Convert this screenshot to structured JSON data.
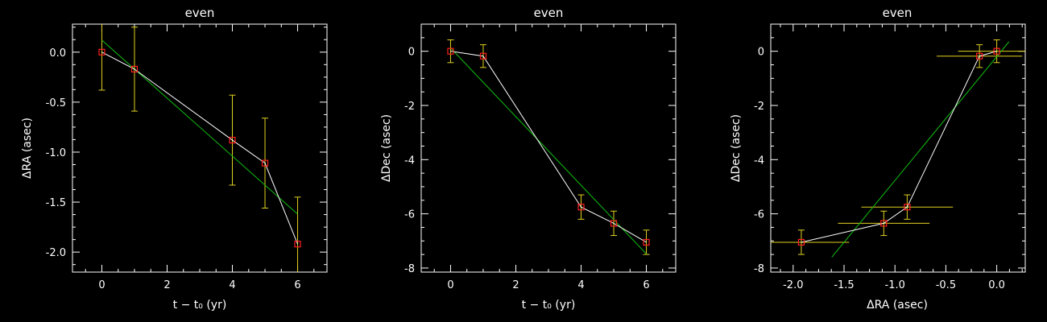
{
  "chart_data": [
    {
      "type": "scatter",
      "title": "even",
      "xlabel": "t − t₀ (yr)",
      "ylabel": "ΔRA (asec)",
      "xlim": [
        -0.9,
        6.9
      ],
      "ylim": [
        -2.2,
        0.28
      ],
      "xticks": [
        0,
        2,
        4,
        6
      ],
      "xtick_labels": [
        "0",
        "2",
        "4",
        "6"
      ],
      "yticks": [
        0.0,
        -0.5,
        -1.0,
        -1.5,
        -2.0
      ],
      "ytick_labels": [
        "0.0",
        "-0.5",
        "-1.0",
        "-1.5",
        "-2.0"
      ],
      "grid": false,
      "points": [
        {
          "x": 0,
          "y": 0.0,
          "yerr": 0.38
        },
        {
          "x": 1,
          "y": -0.17,
          "yerr": 0.42
        },
        {
          "x": 4,
          "y": -0.88,
          "yerr": 0.45
        },
        {
          "x": 5,
          "y": -1.11,
          "yerr": 0.45
        },
        {
          "x": 6,
          "y": -1.92,
          "yerr": 0.47
        }
      ],
      "fit": [
        [
          0,
          0.12
        ],
        [
          6,
          -1.62
        ]
      ],
      "colors": {
        "points": "#ff2020",
        "errorbars": "#e0d020",
        "connect": "#ffffff",
        "fit": "#10c010",
        "axes": "#ffffff"
      }
    },
    {
      "type": "scatter",
      "title": "even",
      "xlabel": "t − t₀ (yr)",
      "ylabel": "ΔDec (asec)",
      "xlim": [
        -0.9,
        6.9
      ],
      "ylim": [
        -8.15,
        1.0
      ],
      "xticks": [
        0,
        2,
        4,
        6
      ],
      "xtick_labels": [
        "0",
        "2",
        "4",
        "6"
      ],
      "yticks": [
        0,
        -2,
        -4,
        -6,
        -8
      ],
      "ytick_labels": [
        "0",
        "-2",
        "-4",
        "-6",
        "-8"
      ],
      "grid": false,
      "points": [
        {
          "x": 0,
          "y": 0.0,
          "yerr": 0.42
        },
        {
          "x": 1,
          "y": -0.18,
          "yerr": 0.42
        },
        {
          "x": 4,
          "y": -5.75,
          "yerr": 0.45
        },
        {
          "x": 5,
          "y": -6.35,
          "yerr": 0.45
        },
        {
          "x": 6,
          "y": -7.05,
          "yerr": 0.45
        }
      ],
      "fit": [
        [
          0,
          0.12
        ],
        [
          6,
          -7.48
        ]
      ],
      "colors": {
        "points": "#ff2020",
        "errorbars": "#e0d020",
        "connect": "#ffffff",
        "fit": "#10c010",
        "axes": "#ffffff"
      }
    },
    {
      "type": "scatter",
      "title": "even",
      "xlabel": "ΔRA (asec)",
      "ylabel": "ΔDec (asec)",
      "xlim": [
        -2.22,
        0.28
      ],
      "ylim": [
        -8.15,
        1.0
      ],
      "xticks": [
        -2.0,
        -1.5,
        -1.0,
        -0.5,
        0.0
      ],
      "xtick_labels": [
        "-2.0",
        "-1.5",
        "-1.0",
        "-0.5",
        "0.0"
      ],
      "yticks": [
        0,
        -2,
        -4,
        -6,
        -8
      ],
      "ytick_labels": [
        "0",
        "-2",
        "-4",
        "-6",
        "-8"
      ],
      "grid": false,
      "points": [
        {
          "x": 0.0,
          "y": 0.0,
          "xerr": 0.38,
          "yerr": 0.42
        },
        {
          "x": -0.17,
          "y": -0.18,
          "xerr": 0.42,
          "yerr": 0.42
        },
        {
          "x": -0.88,
          "y": -5.75,
          "xerr": 0.45,
          "yerr": 0.45
        },
        {
          "x": -1.11,
          "y": -6.35,
          "xerr": 0.45,
          "yerr": 0.45
        },
        {
          "x": -1.92,
          "y": -7.05,
          "xerr": 0.47,
          "yerr": 0.45
        }
      ],
      "fit": [
        [
          -1.62,
          -7.6
        ],
        [
          0.12,
          0.35
        ]
      ],
      "colors": {
        "points": "#ff2020",
        "errorbars": "#e0d020",
        "connect": "#ffffff",
        "fit": "#10c010",
        "axes": "#ffffff"
      }
    }
  ]
}
